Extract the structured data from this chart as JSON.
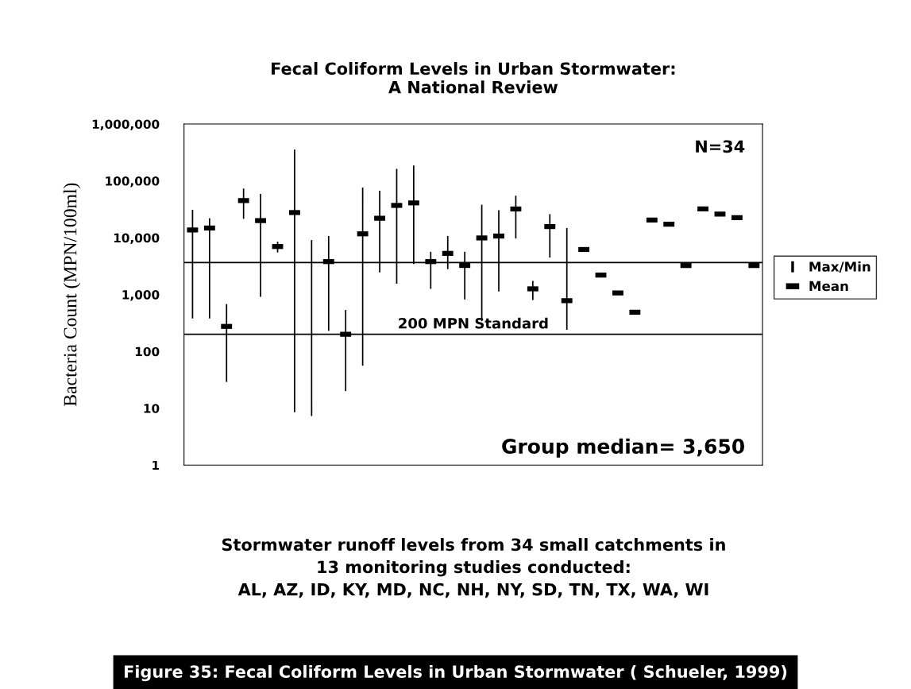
{
  "chart_data": {
    "type": "bar",
    "title": "Fecal Coliform Levels in Urban Stormwater:\nA National Review",
    "ylabel": "Bacteria Count (MPN/100ml)",
    "categories": [
      null,
      null,
      null,
      null,
      null,
      null,
      null,
      null,
      null,
      null,
      null,
      null,
      null,
      null,
      null,
      null,
      null,
      null,
      null,
      null,
      null,
      null,
      null,
      null,
      null,
      null,
      null,
      null,
      null,
      null,
      null,
      null,
      null,
      null
    ],
    "series": [
      {
        "name": "Max/Min",
        "color": "#000000",
        "base": [
          380,
          380,
          29,
          21500,
          910,
          5500,
          8.5,
          7.3,
          230,
          20,
          56,
          2450,
          1550,
          3450,
          1260,
          2800,
          820,
          340,
          1130,
          9700,
          800,
          4470,
          240,
          null,
          null,
          null,
          null,
          null,
          null,
          null,
          null,
          null,
          null,
          null
        ],
        "values": [
          30520,
          21620,
          651,
          51500,
          58090,
          3000,
          354991.5,
          9092.7,
          10470,
          515,
          75944,
          64550,
          160450,
          182550,
          4390,
          7900,
          4830,
          37660,
          29370,
          45300,
          940,
          21530,
          14560,
          null,
          null,
          null,
          null,
          null,
          null,
          null,
          null,
          null,
          null,
          null
        ]
      },
      {
        "name": "Mean",
        "type": "scatter",
        "color": "#000000",
        "values": [
          13700,
          14800,
          275,
          45000,
          20000,
          7000,
          27700,
          null,
          3800,
          200,
          11700,
          22000,
          37000,
          41000,
          3800,
          5300,
          3250,
          9900,
          10700,
          32000,
          1260,
          15700,
          780,
          6200,
          2200,
          1070,
          490,
          20500,
          17300,
          3250,
          32000,
          26000,
          22500,
          3250
        ]
      }
    ],
    "log": "y",
    "ylim": [
      1,
      1000000
    ],
    "yticks": [
      1,
      10,
      100,
      {
        "value": 1000,
        "label": "1,000"
      },
      {
        "value": 10000,
        "label": "10,000"
      },
      {
        "value": 100000,
        "label": "100,000"
      },
      {
        "value": 1000000,
        "label": "1,000,000"
      }
    ],
    "tick_labels": "y",
    "grid": false,
    "legend": "right",
    "ref_lines": [
      {
        "axis": "y",
        "value": 3650,
        "color": "#000000"
      },
      {
        "axis": "y",
        "value": 200,
        "label": "200 MPN Standard",
        "color": "#000000"
      }
    ],
    "annotations": [
      "N=34",
      "Group median= 3,650",
      "Stormwater runoff levels from 34 small catchments in\n13 monitoring studies conducted:\nAL, AZ, ID, KY, MD, NC, NH, NY, SD, TN, TX, WA, WI",
      "Figure 35: Fecal Coliform Levels in Urban Stormwater ( Schueler, 1999)"
    ]
  }
}
